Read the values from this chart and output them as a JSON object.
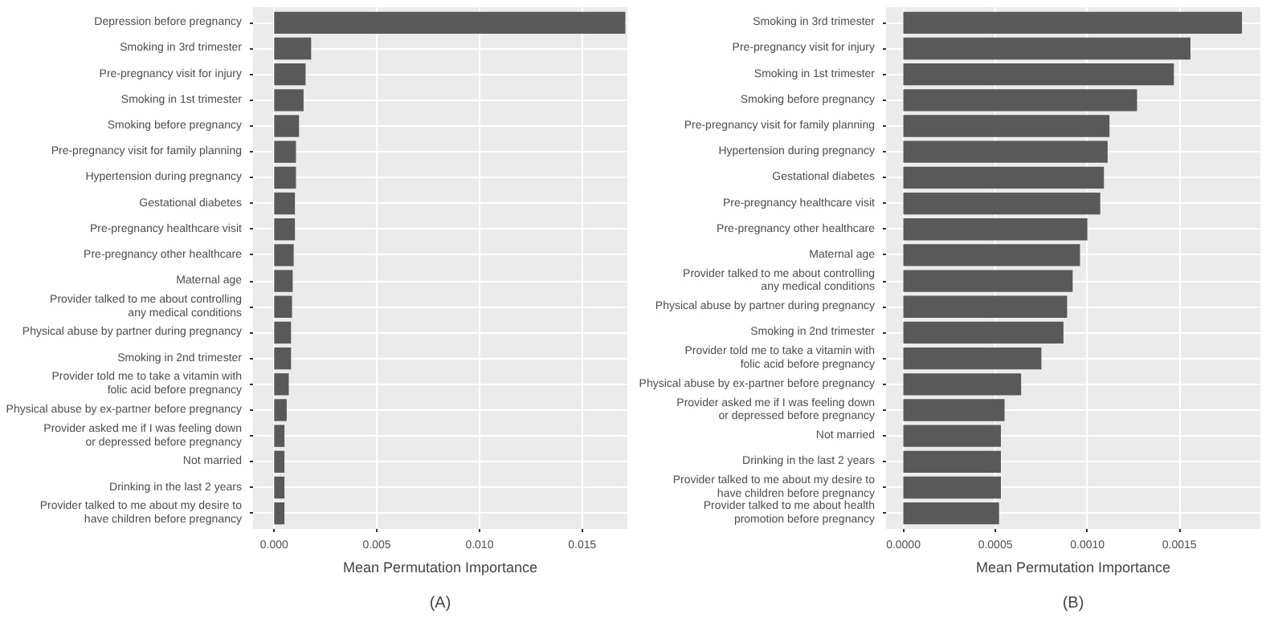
{
  "chart_data": [
    {
      "type": "bar",
      "orientation": "horizontal",
      "color": "#595959",
      "grid": true,
      "xlabel": "Mean Permutation Importance",
      "annotations": [
        "(A)"
      ],
      "categories": [
        "Depression before pregnancy",
        "Smoking in 3rd trimester",
        "Pre-pregnancy visit for injury",
        "Smoking in 1st trimester",
        "Smoking before pregnancy",
        "Pre-pregnancy visit for family planning",
        "Hypertension during pregnancy",
        "Gestational diabetes",
        "Pre-pregnancy healthcare visit",
        "Pre-pregnancy other healthcare",
        "Maternal age",
        "Provider talked to me about controlling any medical conditions",
        "Physical abuse by partner during pregnancy",
        "Smoking in 2nd trimester",
        "Provider told me to take a vitamin with folic acid before pregnancy",
        "Physical abuse by ex-partner before pregnancy",
        "Provider asked me if I was feeling down or depressed before pregnancy",
        "Not married",
        "Drinking in the last 2 years",
        "Provider talked to me about my desire to have children before pregnancy"
      ],
      "values": [
        0.0171,
        0.0018,
        0.00153,
        0.00143,
        0.00121,
        0.00106,
        0.00106,
        0.00101,
        0.00101,
        0.00095,
        0.0009,
        0.00087,
        0.00082,
        0.00082,
        0.00071,
        0.00061,
        0.0005,
        0.0005,
        0.0005,
        0.0005
      ],
      "xlim": [
        -0.00103,
        0.0172
      ],
      "xticks": [
        {
          "value": 0,
          "label": "0.000"
        },
        {
          "value": 0.005,
          "label": "0.005"
        },
        {
          "value": 0.01,
          "label": "0.010"
        },
        {
          "value": 0.015,
          "label": "0.015"
        }
      ]
    },
    {
      "type": "bar",
      "orientation": "horizontal",
      "color": "#595959",
      "grid": true,
      "xlabel": "Mean Permutation Importance",
      "annotations": [
        "(B)"
      ],
      "categories": [
        "Smoking in 3rd trimester",
        "Pre-pregnancy visit for injury",
        "Smoking in 1st trimester",
        "Smoking before pregnancy",
        "Pre-pregnancy visit for family planning",
        "Hypertension during pregnancy",
        "Gestational diabetes",
        "Pre-pregnancy healthcare visit",
        "Pre-pregnancy other healthcare",
        "Maternal age",
        "Provider talked to me about controlling any medical conditions",
        "Physical abuse by partner during pregnancy",
        "Smoking in 2nd trimester",
        "Provider told me to take a vitamin with folic acid before pregnancy",
        "Physical abuse by ex-partner before pregnancy",
        "Provider asked me if I was feeling down or depressed before pregnancy",
        "Not married",
        "Drinking in the last 2 years",
        "Provider talked to me about my desire to have children before pregnancy",
        "Provider talked to me about health promotion before pregnancy"
      ],
      "values": [
        0.00184,
        0.00156,
        0.00147,
        0.00127,
        0.00112,
        0.00111,
        0.00109,
        0.00107,
        0.001,
        0.00096,
        0.00092,
        0.00089,
        0.00087,
        0.00075,
        0.00064,
        0.00055,
        0.00053,
        0.00053,
        0.00053,
        0.00052
      ],
      "xlim": [
        -9.4e-05,
        0.00194
      ],
      "xticks": [
        {
          "value": 0,
          "label": "0.0000"
        },
        {
          "value": 0.0005,
          "label": "0.0005"
        },
        {
          "value": 0.001,
          "label": "0.0010"
        },
        {
          "value": 0.0015,
          "label": "0.0015"
        }
      ]
    }
  ]
}
